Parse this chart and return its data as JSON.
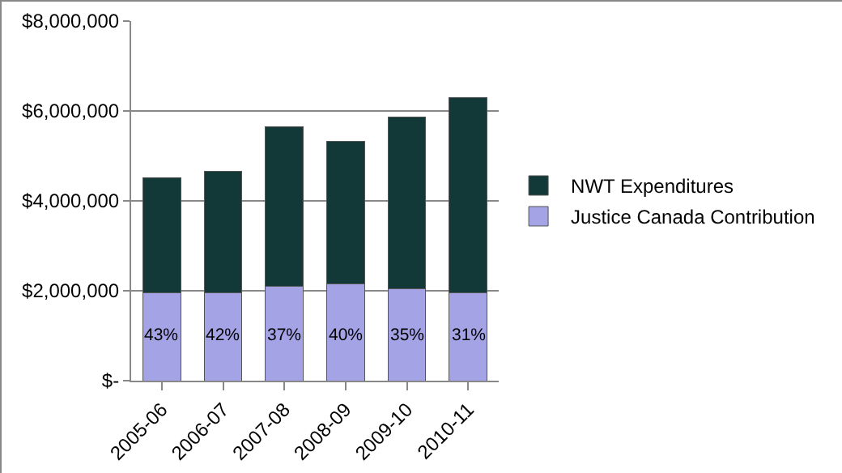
{
  "chart_data": {
    "type": "bar",
    "stacked": true,
    "categories": [
      "2005-06",
      "2006-07",
      "2007-08",
      "2008-09",
      "2009-10",
      "2010-11"
    ],
    "series": [
      {
        "name": "Justice Canada Contribution",
        "color": "#a3a3e6",
        "values": [
          1950000,
          1950000,
          2100000,
          2150000,
          2050000,
          1950000
        ]
      },
      {
        "name": "NWT Expenditures",
        "color": "#123838",
        "values": [
          2570000,
          2700000,
          3550000,
          3170000,
          3820000,
          4350000
        ]
      }
    ],
    "ylim": [
      0,
      8000000
    ],
    "yticks": [
      {
        "value": 0,
        "label": "$-"
      },
      {
        "value": 2000000,
        "label": "$2,000,000"
      },
      {
        "value": 4000000,
        "label": "$4,000,000"
      },
      {
        "value": 6000000,
        "label": "$6,000,000"
      },
      {
        "value": 8000000,
        "label": "$8,000,000"
      }
    ],
    "annotations": [
      {
        "text": "43%",
        "x": "2005-06",
        "y": 1000000
      },
      {
        "text": "42%",
        "x": "2006-07",
        "y": 1000000
      },
      {
        "text": "37%",
        "x": "2007-08",
        "y": 1000000
      },
      {
        "text": "40%",
        "x": "2008-09",
        "y": 1000000
      },
      {
        "text": "35%",
        "x": "2009-10",
        "y": 1000000
      },
      {
        "text": "31%",
        "x": "2010-11",
        "y": 1000000
      }
    ],
    "grid": "y",
    "legend": "right"
  }
}
